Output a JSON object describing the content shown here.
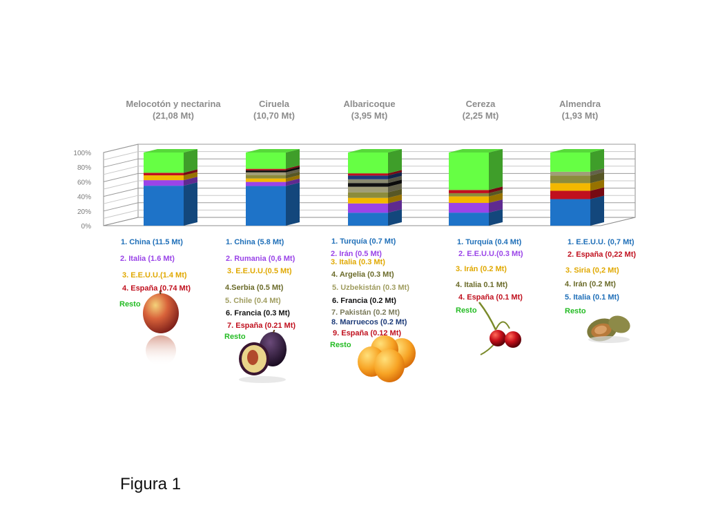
{
  "caption": "Figura 1",
  "chart_data": {
    "type": "bar",
    "stacked": true,
    "percent": true,
    "style": "3d",
    "ylim": [
      0,
      100
    ],
    "yticks": [
      "0%",
      "20%",
      "40%",
      "60%",
      "80%",
      "100%"
    ],
    "grid": true,
    "categories": [
      {
        "title": "Melocotón y nectarina",
        "total": "(21,08 Mt)",
        "fruit": "peach"
      },
      {
        "title": "Ciruela",
        "total": "(10,70 Mt)",
        "fruit": "plum"
      },
      {
        "title": "Albaricoque",
        "total": "(3,95 Mt)",
        "fruit": "apricot"
      },
      {
        "title": "Cereza",
        "total": "(2,25 Mt)",
        "fruit": "cherry"
      },
      {
        "title": "Almendra",
        "total": "(1,93 Mt)",
        "fruit": "almond"
      }
    ],
    "stacks": [
      [
        {
          "value": 54.6,
          "color": "#1e73c8"
        },
        {
          "value": 7.6,
          "color": "#9a44e8"
        },
        {
          "value": 6.6,
          "color": "#f3b800"
        },
        {
          "value": 3.5,
          "color": "#c0101e"
        },
        {
          "value": 27.7,
          "color": "#66ff44"
        }
      ],
      [
        {
          "value": 54.2,
          "color": "#1e73c8"
        },
        {
          "value": 5.6,
          "color": "#9a44e8"
        },
        {
          "value": 4.7,
          "color": "#f3b800"
        },
        {
          "value": 4.7,
          "color": "#8c8c3c"
        },
        {
          "value": 3.7,
          "color": "#a09d78"
        },
        {
          "value": 2.8,
          "color": "#111111"
        },
        {
          "value": 2.0,
          "color": "#c0101e"
        },
        {
          "value": 22.3,
          "color": "#66ff44"
        }
      ],
      [
        {
          "value": 17.7,
          "color": "#1e73c8"
        },
        {
          "value": 12.7,
          "color": "#9a44e8"
        },
        {
          "value": 7.6,
          "color": "#f3b800"
        },
        {
          "value": 7.6,
          "color": "#8c8c3c"
        },
        {
          "value": 7.6,
          "color": "#a09d78"
        },
        {
          "value": 5.1,
          "color": "#111111"
        },
        {
          "value": 5.1,
          "color": "#8a8a70"
        },
        {
          "value": 5.1,
          "color": "#1c3a78"
        },
        {
          "value": 3.0,
          "color": "#c0101e"
        },
        {
          "value": 28.5,
          "color": "#66ff44"
        }
      ],
      [
        {
          "value": 17.8,
          "color": "#1e73c8"
        },
        {
          "value": 13.3,
          "color": "#9a44e8"
        },
        {
          "value": 8.9,
          "color": "#f3b800"
        },
        {
          "value": 4.4,
          "color": "#8c8c3c"
        },
        {
          "value": 4.4,
          "color": "#c0101e"
        },
        {
          "value": 51.2,
          "color": "#66ff44"
        }
      ],
      [
        {
          "value": 36.3,
          "color": "#1e73c8"
        },
        {
          "value": 11.4,
          "color": "#c0101e"
        },
        {
          "value": 10.4,
          "color": "#f3b800"
        },
        {
          "value": 10.4,
          "color": "#8c8c3c"
        },
        {
          "value": 5.2,
          "color": "#a09d78"
        },
        {
          "value": 26.3,
          "color": "#66ff44"
        }
      ]
    ],
    "rankings": [
      [
        {
          "text": "1. China (11.5 Mt)",
          "color": "#1f6fb8"
        },
        {
          "text": "2. Italia (1.6 Mt)",
          "color": "#9a44e8"
        },
        {
          "text": "3. E.E.U.U.(1.4 Mt)",
          "color": "#e0a800"
        },
        {
          "text": "4. España (0.74 Mt)",
          "color": "#c0101e"
        },
        {
          "text": "Resto",
          "color": "#22bb22"
        }
      ],
      [
        {
          "text": "1. China (5.8 Mt)",
          "color": "#1f6fb8"
        },
        {
          "text": "2. Rumania (0,6 Mt)",
          "color": "#9a44e8"
        },
        {
          "text": "3. E.E.U.U.(0.5 Mt)",
          "color": "#e0a800"
        },
        {
          "text": "4.Serbia (0.5 Mt)",
          "color": "#6b6b2a"
        },
        {
          "text": "5. Chile (0.4 Mt)",
          "color": "#a09d60"
        },
        {
          "text": "6. Francia (0.3 Mt)",
          "color": "#111111"
        },
        {
          "text": "7. España (0.21 Mt)",
          "color": "#c0101e"
        },
        {
          "text": "Resto",
          "color": "#22bb22"
        }
      ],
      [
        {
          "text": "1. Turquía (0.7 Mt)",
          "color": "#1f6fb8"
        },
        {
          "text": "2. Irán (0.5 Mt)",
          "color": "#9a44e8"
        },
        {
          "text": "3. Italia (0.3 Mt)",
          "color": "#e0a800"
        },
        {
          "text": "4. Argelia (0.3 Mt)",
          "color": "#6b6b2a"
        },
        {
          "text": "5. Uzbekistán (0.3 Mt)",
          "color": "#a09d60"
        },
        {
          "text": "6. Francia (0.2 Mt)",
          "color": "#111111"
        },
        {
          "text": "7. Pakistán (0.2 Mt)",
          "color": "#7a7a5a"
        },
        {
          "text": "8. Marruecos (0.2 Mt)",
          "color": "#1c3a78"
        },
        {
          "text": "9. España (0.12 Mt)",
          "color": "#c0101e"
        },
        {
          "text": "Resto",
          "color": "#22bb22"
        }
      ],
      [
        {
          "text": "1. Turquía (0.4 Mt)",
          "color": "#1f6fb8"
        },
        {
          "text": "2. E.E.U.U.(0.3 Mt)",
          "color": "#9a44e8"
        },
        {
          "text": "3. Irán (0.2 Mt)",
          "color": "#e0a800"
        },
        {
          "text": "4. Italia 0.1 Mt)",
          "color": "#6b6b2a"
        },
        {
          "text": "4. España (0.1 Mt)",
          "color": "#c0101e"
        },
        {
          "text": "Resto",
          "color": "#22bb22"
        }
      ],
      [
        {
          "text": "1. E.E.U.U. (0,7 Mt)",
          "color": "#1f6fb8"
        },
        {
          "text": "2. España (0,22 Mt)",
          "color": "#c0101e"
        },
        {
          "text": "3. Siria (0,2 Mt)",
          "color": "#e0a800"
        },
        {
          "text": "4. Irán (0.2 Mt)",
          "color": "#6b6b2a"
        },
        {
          "text": "5. Italia (0.1 Mt)",
          "color": "#1f6fb8"
        },
        {
          "text": "Resto",
          "color": "#22bb22"
        }
      ]
    ]
  }
}
